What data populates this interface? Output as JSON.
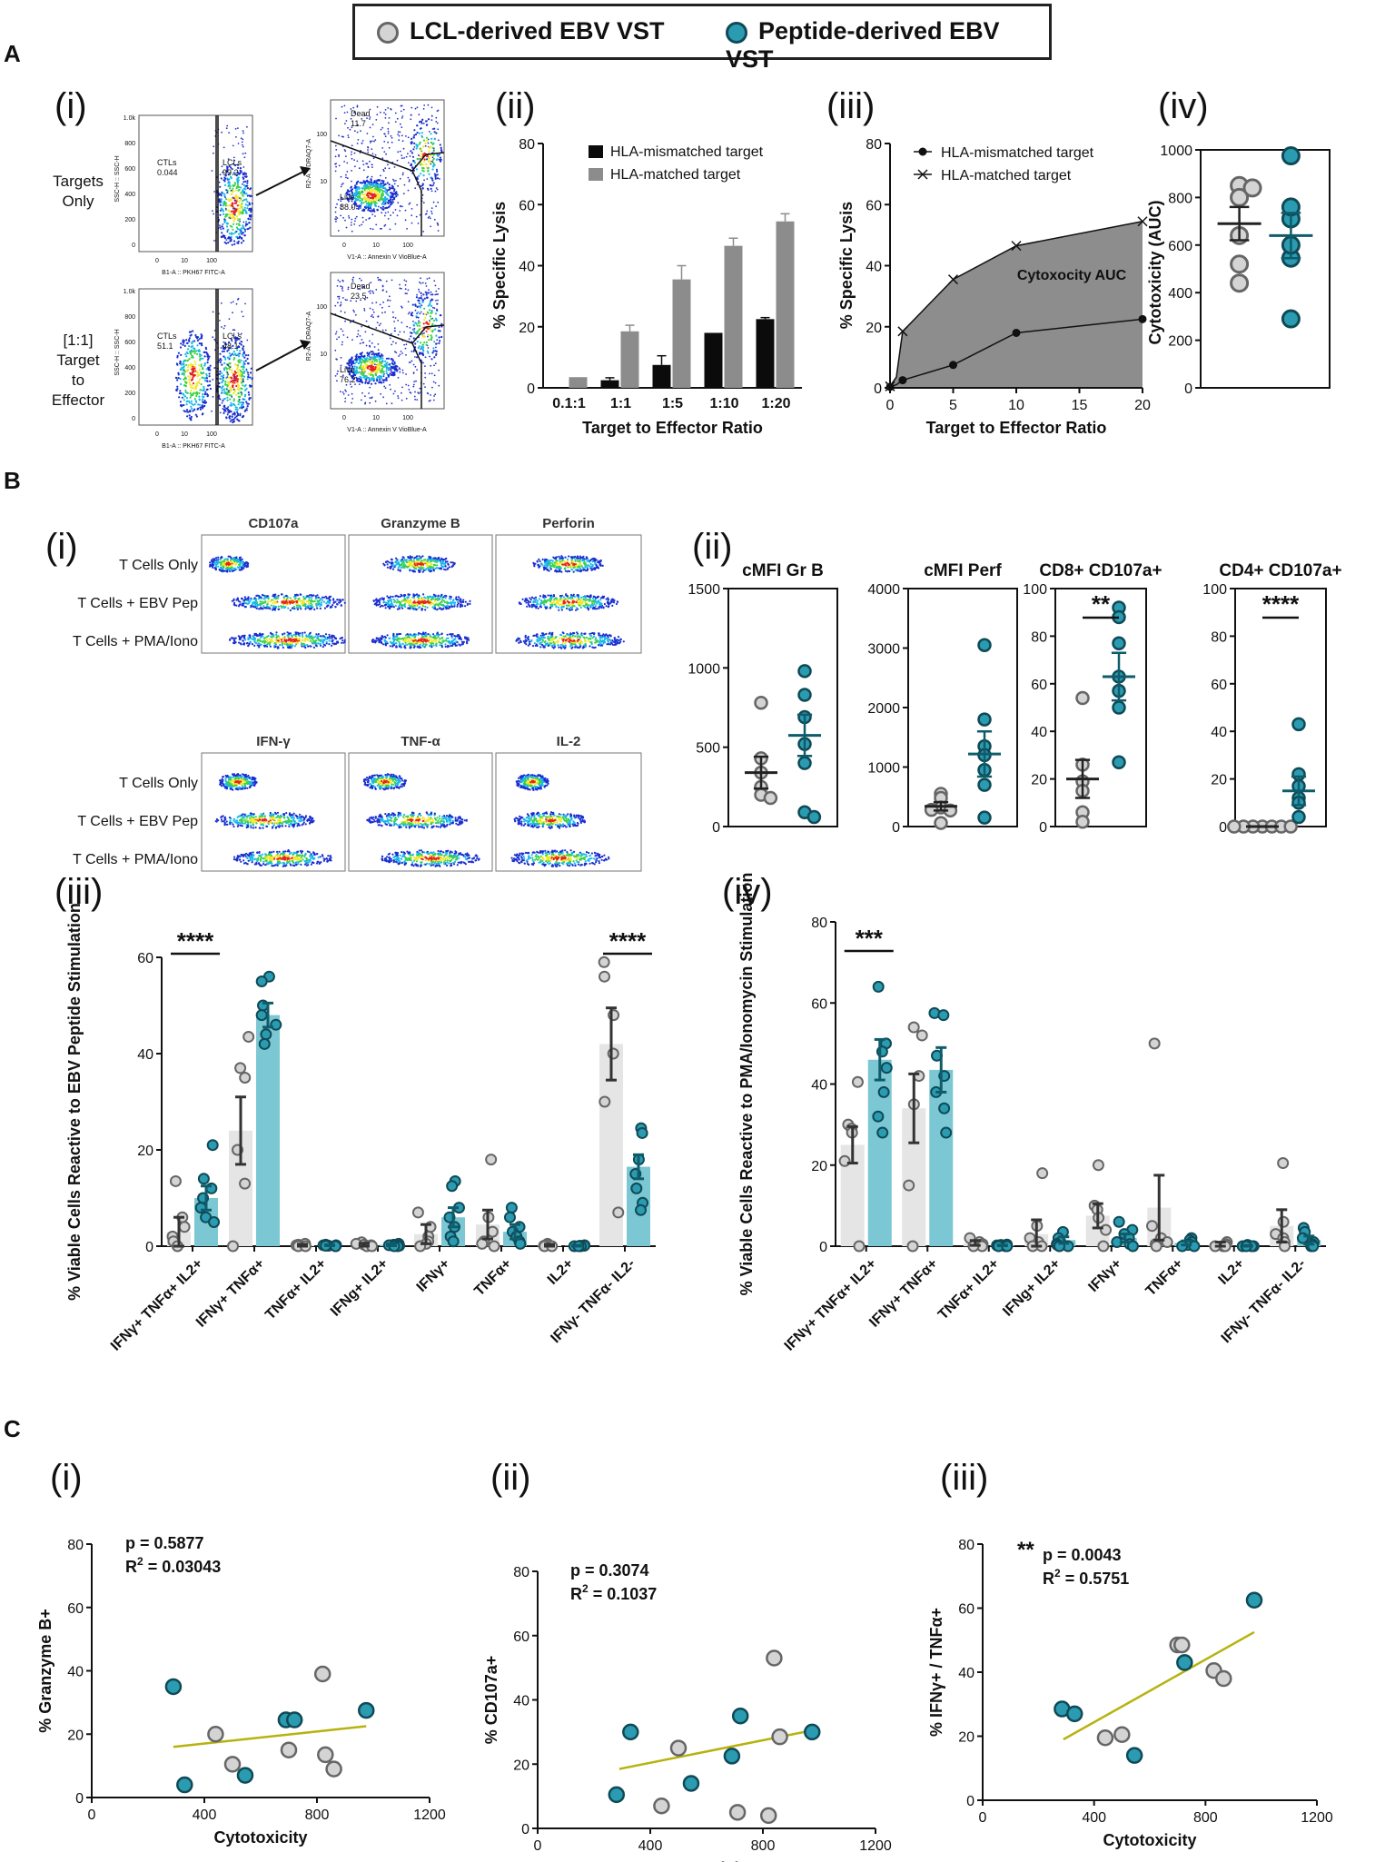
{
  "legend": {
    "lcl": "LCL-derived EBV VST",
    "pep": "Peptide-derived EBV VST"
  },
  "colors": {
    "lcl": "#d4d4d4",
    "lcl_edge": "#666666",
    "pep": "#2b9bb1",
    "pep_edge": "#0f4a56",
    "lcl_bar": "#e5e5e5",
    "pep_bar": "#7cc7d4",
    "fit": "#b7b20e"
  },
  "section_labels": [
    "A",
    "B",
    "C"
  ],
  "panel_labels": {
    "Ai": "(i)",
    "Aii": "(ii)",
    "Aiii": "(iii)",
    "Aiv": "(iv)",
    "Bi": "(i)",
    "Bii": "(ii)",
    "Biii": "(iii)",
    "Biv": "(iv)",
    "Ci": "(i)",
    "Cii": "(ii)",
    "Ciii": "(iii)"
  },
  "flow_A": {
    "row_labels": [
      [
        "Targets",
        "Only"
      ],
      [
        "[1:1]",
        "Target",
        "to",
        "Effector"
      ]
    ],
    "gates_row1": {
      "ctl": "CTLs",
      "ctl_v": "0.044",
      "lcl": "LCLs",
      "lcl_v": "99.2",
      "dead": "Dead",
      "dead_v": "11.7",
      "live": "Live",
      "live_v": "88.0"
    },
    "gates_row2": {
      "ctl": "CTLs",
      "ctl_v": "51.1",
      "lcl": "LCLs",
      "lcl_v": "48.1",
      "dead": "Dead",
      "dead_v": "23.5",
      "live": "Live",
      "live_v": "76.2"
    },
    "axis_left_y": "SSC-H :: SSC-H",
    "axis_left_x": "B1-A :: PKH67 FITC-A",
    "axis_right_y": "R2-A :: DRAQ7-A",
    "axis_right_x": "V1-A :: Annexin V VioBlue-A",
    "ticks_left_y": [
      "1.0k",
      "800",
      "600",
      "400",
      "200",
      "0"
    ],
    "ticks_left_x": [
      "0",
      "10",
      "100"
    ],
    "ticks_right_y": [
      "100",
      "10"
    ],
    "ticks_right_x": [
      "0",
      "10",
      "100"
    ]
  },
  "flow_B": {
    "top_cols": [
      "CD107a",
      "Granzyme B",
      "Perforin"
    ],
    "bottom_cols": [
      "IFN-γ",
      "TNF-α",
      "IL-2"
    ],
    "rows": [
      "T Cells Only",
      "T Cells + EBV Pep",
      "T Cells + PMA/Iono"
    ]
  },
  "chart_data": [
    {
      "id": "Aii",
      "type": "bar",
      "categories": [
        "0.1:1",
        "1:1",
        "1:5",
        "1:10",
        "1:20"
      ],
      "series": [
        {
          "name": "HLA-mismatched target",
          "values": [
            0.3,
            2.5,
            7.5,
            18,
            22.5
          ],
          "errors": [
            0,
            0.8,
            3,
            0,
            0.5
          ]
        },
        {
          "name": "HLA-matched target",
          "values": [
            3.5,
            18.5,
            35.5,
            46.5,
            54.5
          ],
          "errors": [
            0,
            2,
            4.5,
            2.5,
            2.5
          ]
        }
      ],
      "xlabel": "Target to Effector Ratio",
      "ylabel": "% Specific Lysis",
      "ylim": [
        0,
        80
      ],
      "yticks": [
        0,
        20,
        40,
        60,
        80
      ]
    },
    {
      "id": "Aiii",
      "type": "line",
      "series": [
        {
          "name": "HLA-mismatched target",
          "x": [
            0,
            0.5,
            1,
            5,
            10,
            20
          ],
          "values": [
            0.3,
            1,
            2.5,
            7.5,
            18,
            22.5
          ]
        },
        {
          "name": "HLA-matched target",
          "x": [
            0,
            0.5,
            1,
            5,
            10,
            20
          ],
          "values": [
            0.5,
            3.5,
            18.5,
            35.5,
            46.5,
            54.5
          ]
        }
      ],
      "annotation": "Cytoxocity AUC",
      "xlabel": "Target to Effector Ratio",
      "ylabel": "% Specific Lysis",
      "xlim": [
        0,
        20
      ],
      "ylim": [
        0,
        80
      ],
      "xticks": [
        0,
        5,
        10,
        15,
        20
      ],
      "yticks": [
        0,
        20,
        40,
        60,
        80
      ]
    },
    {
      "id": "Aiv",
      "type": "scatter",
      "ylabel": "Cytotoxicity (AUC)",
      "ylim": [
        0,
        1000
      ],
      "yticks": [
        0,
        200,
        400,
        600,
        800,
        1000
      ],
      "groups": [
        {
          "name": "LCL-derived EBV VST",
          "values": [
            850,
            800,
            840,
            520,
            440,
            640
          ],
          "mean": 690,
          "sem": 70
        },
        {
          "name": "Peptide-derived EBV VST",
          "values": [
            975,
            710,
            760,
            545,
            290,
            600
          ],
          "mean": 640,
          "sem": 95
        }
      ]
    },
    {
      "id": "Bii-1",
      "type": "scatter",
      "title": "cMFI Gr B",
      "ylim": [
        0,
        1500
      ],
      "yticks": [
        0,
        500,
        1000,
        1500
      ],
      "groups": [
        {
          "name": "LCL",
          "values": [
            780,
            430,
            340,
            250,
            200,
            180
          ],
          "mean": 340,
          "sem": 100
        },
        {
          "name": "Pep",
          "values": [
            980,
            830,
            690,
            520,
            400,
            90,
            60
          ],
          "mean": 575,
          "sem": 130
        }
      ]
    },
    {
      "id": "Bii-2",
      "type": "scatter",
      "title": "cMFI Perf",
      "ylim": [
        0,
        4000
      ],
      "yticks": [
        0,
        1000,
        2000,
        3000,
        4000
      ],
      "groups": [
        {
          "name": "LCL",
          "values": [
            550,
            480,
            320,
            270,
            280,
            60
          ],
          "mean": 340,
          "sem": 70
        },
        {
          "name": "Pep",
          "values": [
            3050,
            1800,
            1350,
            1200,
            950,
            700,
            150
          ],
          "mean": 1220,
          "sem": 380
        }
      ]
    },
    {
      "id": "Bii-3",
      "type": "scatter",
      "title": "CD8+ CD107a+",
      "ylim": [
        0,
        100
      ],
      "yticks": [
        0,
        20,
        40,
        60,
        80,
        100
      ],
      "significance": "**",
      "groups": [
        {
          "name": "LCL",
          "values": [
            54,
            26,
            19,
            15,
            6,
            2
          ],
          "mean": 20,
          "sem": 8
        },
        {
          "name": "Pep",
          "values": [
            92,
            88,
            77,
            63,
            57,
            50,
            27
          ],
          "mean": 63,
          "sem": 10
        }
      ]
    },
    {
      "id": "Bii-4",
      "type": "scatter",
      "title": "CD4+ CD107a+",
      "ylim": [
        0,
        100
      ],
      "yticks": [
        0,
        20,
        40,
        60,
        80,
        100
      ],
      "significance": "****",
      "groups": [
        {
          "name": "LCL",
          "values": [
            0,
            0,
            0,
            0,
            0,
            0,
            0
          ],
          "mean": 0,
          "sem": 0
        },
        {
          "name": "Pep",
          "values": [
            43,
            22,
            17,
            12,
            10,
            4
          ],
          "mean": 15,
          "sem": 6
        }
      ]
    },
    {
      "id": "Biii",
      "type": "bar",
      "ylabel": "% Viable Cells Reactive to EBV Peptide Stimulation",
      "ylim": [
        0,
        60
      ],
      "yticks": [
        0,
        20,
        40,
        60
      ],
      "categories": [
        "IFNγ+ TNFα+ IL2+",
        "IFNγ+ TNFα+",
        "TNFα+ IL2+",
        "IFNg+ IL2+",
        "IFNγ+",
        "TNFα+",
        "IL2+",
        "IFNγ- TNFα- IL2-"
      ],
      "significance": [
        "****",
        "",
        "",
        "",
        "",
        "",
        "",
        "****"
      ],
      "series": [
        {
          "name": "LCL-derived EBV VST",
          "values": [
            3,
            24,
            0.2,
            0.3,
            2.5,
            4.5,
            0.2,
            42
          ],
          "errors": [
            3,
            7,
            0.2,
            0.3,
            2,
            3,
            0.2,
            7.5
          ],
          "points": [
            [
              13.5,
              6,
              4,
              2,
              1,
              0
            ],
            [
              43.5,
              37,
              35,
              20,
              13,
              0
            ],
            [
              0.5,
              0.3,
              0.2,
              0.1,
              0,
              0
            ],
            [
              0.8,
              0.5,
              0.3,
              0.2,
              0,
              0
            ],
            [
              7,
              4,
              2,
              1,
              0.5,
              0
            ],
            [
              18,
              6,
              3,
              1,
              0.5,
              0
            ],
            [
              0.5,
              0.3,
              0.1,
              0,
              0
            ],
            [
              59,
              56,
              48,
              40,
              30,
              7
            ]
          ]
        },
        {
          "name": "Peptide-derived EBV VST",
          "values": [
            10,
            48,
            0.2,
            0.3,
            6,
            3,
            0.1,
            16.5
          ],
          "errors": [
            2.5,
            2.5,
            0.1,
            0.2,
            2,
            1.5,
            0.1,
            2.5
          ],
          "points": [
            [
              21,
              14,
              12,
              10,
              8,
              6,
              5
            ],
            [
              56,
              55,
              50,
              48,
              46,
              44,
              42
            ],
            [
              0.3,
              0.2,
              0.2,
              0.1,
              0.1,
              0,
              0
            ],
            [
              0.5,
              0.3,
              0.2,
              0.2,
              0.1,
              0,
              0
            ],
            [
              13.5,
              12.5,
              8,
              6,
              4,
              2,
              1
            ],
            [
              8,
              6,
              4,
              3,
              2,
              1,
              0.5
            ],
            [
              0.2,
              0.1,
              0.1,
              0,
              0,
              0,
              0
            ],
            [
              24.5,
              23.5,
              18,
              15,
              12,
              9,
              7.5
            ]
          ]
        }
      ]
    },
    {
      "id": "Biv",
      "type": "bar",
      "ylabel": "% Viable Cells Reactive to PMA/Ionomycin Stimulation",
      "ylim": [
        0,
        80
      ],
      "yticks": [
        0,
        20,
        40,
        60,
        80
      ],
      "categories": [
        "IFNγ+ TNFα+ IL2+",
        "IFNγ+ TNFα+",
        "TNFα+ IL2+",
        "IFNg+ IL2+",
        "IFNγ+",
        "TNFα+",
        "IL2+",
        "IFNγ- TNFα- IL2-"
      ],
      "significance": [
        "***",
        "",
        "",
        "",
        "",
        "",
        "",
        ""
      ],
      "series": [
        {
          "name": "LCL-derived EBV VST",
          "values": [
            25,
            34,
            0.8,
            3,
            7.5,
            9.5,
            0.5,
            5
          ],
          "errors": [
            4.5,
            8.5,
            0.6,
            3.5,
            3,
            8,
            0.5,
            4
          ],
          "points": [
            [
              40.5,
              30,
              29,
              28,
              21,
              0
            ],
            [
              54,
              52,
              42,
              35,
              15,
              0
            ],
            [
              2,
              1,
              0.5,
              0.3,
              0,
              0
            ],
            [
              18,
              5,
              2,
              1,
              0,
              0
            ],
            [
              20,
              10,
              9,
              7,
              4,
              0
            ],
            [
              50,
              5,
              2,
              1,
              0.5,
              0
            ],
            [
              1,
              0.5,
              0.3,
              0,
              0,
              0
            ],
            [
              20.5,
              6,
              3,
              2,
              1,
              0
            ]
          ]
        },
        {
          "name": "Peptide-derived EBV VST",
          "values": [
            46,
            43.5,
            0.2,
            1.5,
            2,
            0.8,
            0.1,
            1.5
          ],
          "errors": [
            5,
            5.5,
            0.1,
            0.8,
            1,
            0.5,
            0.1,
            1
          ],
          "points": [
            [
              64,
              50,
              48,
              44,
              38,
              32,
              28
            ],
            [
              57.5,
              57,
              47,
              42,
              38,
              34,
              28
            ],
            [
              0.4,
              0.3,
              0.2,
              0.1,
              0,
              0,
              0
            ],
            [
              3.5,
              2,
              1,
              0.5,
              0.3,
              0,
              0
            ],
            [
              6,
              4,
              3,
              2,
              1,
              0.5,
              0
            ],
            [
              2,
              1.5,
              1,
              0.5,
              0.3,
              0,
              0
            ],
            [
              0.3,
              0.1,
              0,
              0,
              0,
              0,
              0
            ],
            [
              4.5,
              3.5,
              2,
              1,
              0.5,
              0,
              0
            ]
          ]
        }
      ]
    },
    {
      "id": "Ci",
      "type": "scatter",
      "xlabel": "Cytotoxicity",
      "ylabel": "% Granzyme B+",
      "xlim": [
        0,
        1200
      ],
      "ylim": [
        0,
        80
      ],
      "xticks": [
        0,
        400,
        800,
        1200
      ],
      "yticks": [
        0,
        20,
        40,
        60,
        80
      ],
      "stats": {
        "p": "p = 0.5877",
        "r2": "R",
        "r2_val": " = 0.03043"
      },
      "fit": {
        "x": [
          290,
          975
        ],
        "y": [
          16,
          22.5
        ]
      },
      "points": [
        {
          "g": "lcl",
          "x": 440,
          "y": 20
        },
        {
          "g": "lcl",
          "x": 500,
          "y": 10.5
        },
        {
          "g": "lcl",
          "x": 700,
          "y": 15
        },
        {
          "g": "lcl",
          "x": 820,
          "y": 39
        },
        {
          "g": "lcl",
          "x": 830,
          "y": 13.5
        },
        {
          "g": "lcl",
          "x": 860,
          "y": 9
        },
        {
          "g": "pep",
          "x": 290,
          "y": 35
        },
        {
          "g": "pep",
          "x": 330,
          "y": 4
        },
        {
          "g": "pep",
          "x": 545,
          "y": 7
        },
        {
          "g": "pep",
          "x": 690,
          "y": 24.5
        },
        {
          "g": "pep",
          "x": 720,
          "y": 24.5
        },
        {
          "g": "pep",
          "x": 975,
          "y": 27.5
        }
      ]
    },
    {
      "id": "Cii",
      "type": "scatter",
      "xlabel": "Cytotoxicity",
      "ylabel": "% CD107a+",
      "xlim": [
        0,
        1200
      ],
      "ylim": [
        0,
        80
      ],
      "xticks": [
        0,
        400,
        800,
        1200
      ],
      "yticks": [
        0,
        20,
        40,
        60,
        80
      ],
      "stats": {
        "p": "p = 0.3074",
        "r2": "R",
        "r2_val": " = 0.1037"
      },
      "fit": {
        "x": [
          290,
          975
        ],
        "y": [
          18.5,
          30.5
        ]
      },
      "points": [
        {
          "g": "lcl",
          "x": 440,
          "y": 7
        },
        {
          "g": "lcl",
          "x": 500,
          "y": 25
        },
        {
          "g": "lcl",
          "x": 710,
          "y": 5
        },
        {
          "g": "lcl",
          "x": 820,
          "y": 4
        },
        {
          "g": "lcl",
          "x": 840,
          "y": 53
        },
        {
          "g": "lcl",
          "x": 860,
          "y": 28.5
        },
        {
          "g": "pep",
          "x": 280,
          "y": 10.5
        },
        {
          "g": "pep",
          "x": 330,
          "y": 30
        },
        {
          "g": "pep",
          "x": 545,
          "y": 14
        },
        {
          "g": "pep",
          "x": 690,
          "y": 22.5
        },
        {
          "g": "pep",
          "x": 720,
          "y": 35
        },
        {
          "g": "pep",
          "x": 975,
          "y": 30
        }
      ]
    },
    {
      "id": "Ciii",
      "type": "scatter",
      "xlabel": "Cytotoxicity",
      "ylabel": "% IFNγ+ / TNFα+",
      "xlim": [
        0,
        1200
      ],
      "ylim": [
        0,
        80
      ],
      "xticks": [
        0,
        400,
        800,
        1200
      ],
      "yticks": [
        0,
        20,
        40,
        60,
        80
      ],
      "significance": "**",
      "stats": {
        "p": "p = 0.0043",
        "r2": "R",
        "r2_val": " = 0.5751"
      },
      "fit": {
        "x": [
          290,
          975
        ],
        "y": [
          19,
          52.5
        ]
      },
      "points": [
        {
          "g": "lcl",
          "x": 440,
          "y": 19.5
        },
        {
          "g": "lcl",
          "x": 500,
          "y": 20.5
        },
        {
          "g": "lcl",
          "x": 700,
          "y": 48.5
        },
        {
          "g": "lcl",
          "x": 715,
          "y": 48.5
        },
        {
          "g": "lcl",
          "x": 830,
          "y": 40.5
        },
        {
          "g": "lcl",
          "x": 865,
          "y": 38
        },
        {
          "g": "pep",
          "x": 285,
          "y": 28.5
        },
        {
          "g": "pep",
          "x": 330,
          "y": 27
        },
        {
          "g": "pep",
          "x": 545,
          "y": 14
        },
        {
          "g": "pep",
          "x": 725,
          "y": 43
        },
        {
          "g": "pep",
          "x": 975,
          "y": 62.5
        }
      ]
    }
  ]
}
